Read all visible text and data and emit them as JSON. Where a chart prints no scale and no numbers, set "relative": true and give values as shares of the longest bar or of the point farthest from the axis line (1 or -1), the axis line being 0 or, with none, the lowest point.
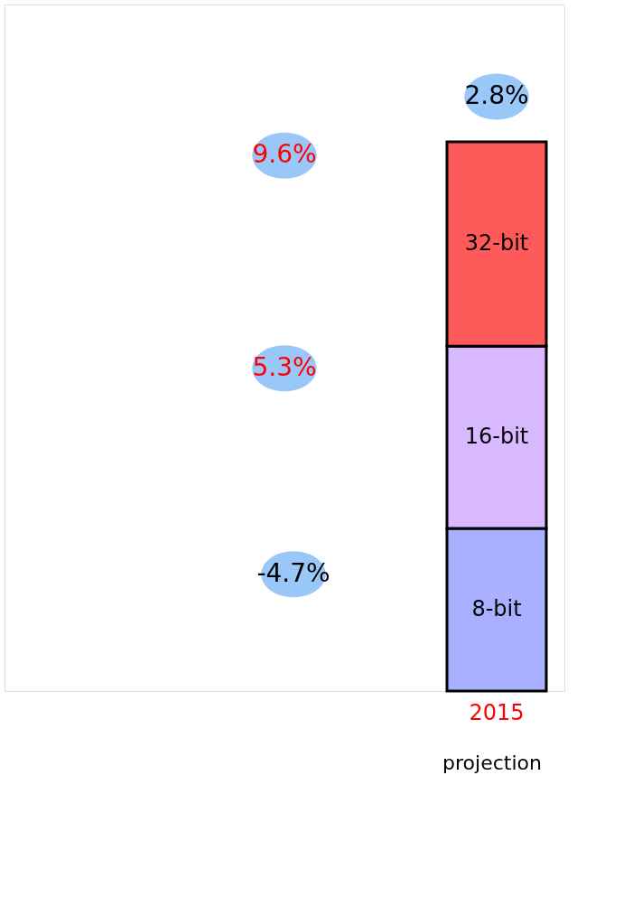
{
  "chart_data": {
    "type": "bar",
    "stacked": true,
    "relative": true,
    "categories": [
      "2015"
    ],
    "series": [
      {
        "name": "8-bit",
        "color": "#a8b0ff",
        "values": [
          0.296
        ]
      },
      {
        "name": "16-bit",
        "color": "#d8b8ff",
        "values": [
          0.332
        ]
      },
      {
        "name": "32-bit",
        "color": "#ff5a5a",
        "values": [
          0.372
        ]
      }
    ],
    "annotations": [
      "2.8%",
      "9.6%",
      "5.3%",
      "-4.7%",
      "projection"
    ]
  }
}
